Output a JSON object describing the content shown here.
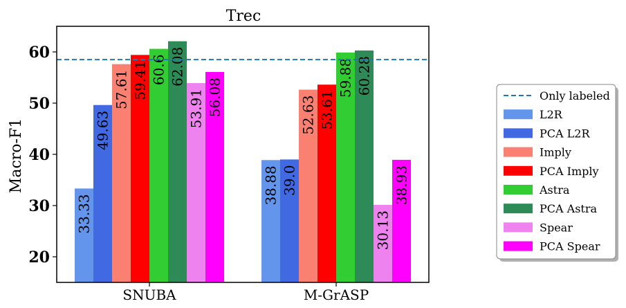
{
  "chart_data": {
    "type": "bar",
    "title": "Trec",
    "xlabel": "",
    "ylabel": "Macro-F1",
    "ylim": [
      15,
      65
    ],
    "yticks": [
      20,
      30,
      40,
      50,
      60
    ],
    "categories": [
      "SNUBA",
      "M-GrASP"
    ],
    "series": [
      {
        "name": "L2R",
        "color": "#6495ED",
        "values": [
          33.33,
          38.88
        ],
        "labels": [
          "33.33",
          "38.88"
        ]
      },
      {
        "name": "PCA L2R",
        "color": "#4169E1",
        "values": [
          49.63,
          39.0
        ],
        "labels": [
          "49.63",
          "39.0"
        ]
      },
      {
        "name": "Imply",
        "color": "#FA8072",
        "values": [
          57.61,
          52.63
        ],
        "labels": [
          "57.61",
          "52.63"
        ]
      },
      {
        "name": "PCA Imply",
        "color": "#FF0000",
        "values": [
          59.41,
          53.61
        ],
        "labels": [
          "59.41",
          "53.61"
        ]
      },
      {
        "name": "Astra",
        "color": "#32CD32",
        "values": [
          60.6,
          59.88
        ],
        "labels": [
          "60.6",
          "59.88"
        ]
      },
      {
        "name": "PCA Astra",
        "color": "#2E8B57",
        "values": [
          62.08,
          60.28
        ],
        "labels": [
          "62.08",
          "60.28"
        ]
      },
      {
        "name": "Spear",
        "color": "#EE82EE",
        "values": [
          53.91,
          30.13
        ],
        "labels": [
          "53.91",
          "30.13"
        ]
      },
      {
        "name": "PCA Spear",
        "color": "#FF00FF",
        "values": [
          56.08,
          38.93
        ],
        "labels": [
          "56.08",
          "38.93"
        ]
      }
    ],
    "reference_line": {
      "name": "Only labeled",
      "value": 58.5,
      "color": "#1f77b4",
      "style": "dashed"
    },
    "legend_position": "right",
    "grid": false
  }
}
